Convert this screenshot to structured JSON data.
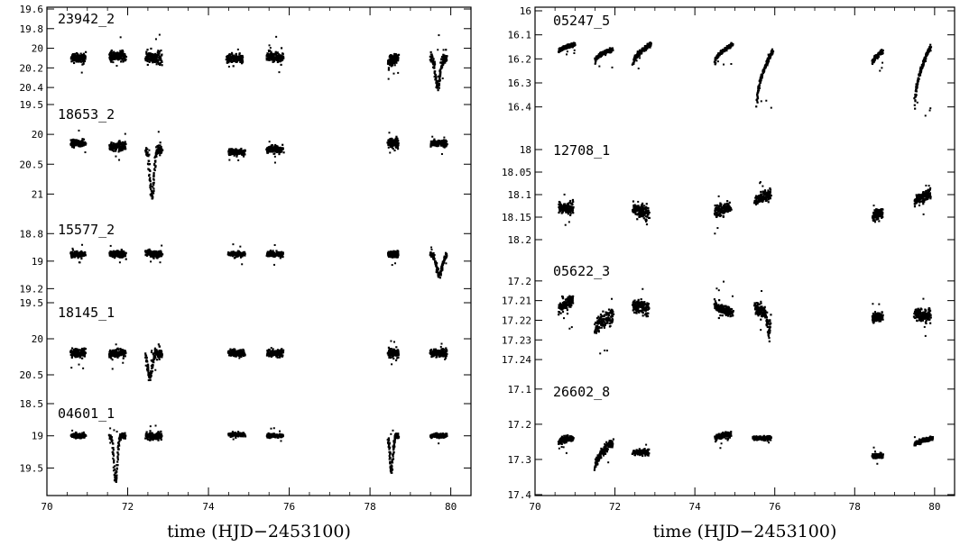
{
  "chart_data": [
    {
      "type": "scatter",
      "xlabel": "time (HJD−2453100)",
      "xlim": [
        70,
        80.5
      ],
      "xticks": [
        70,
        72,
        74,
        76,
        78,
        80
      ],
      "xtick_labels": [
        "70",
        "72",
        "74",
        "76",
        "78",
        "80"
      ],
      "y_inverted": true,
      "grid": false,
      "panels": [
        {
          "name": "23942_2",
          "ylim": [
            19.6,
            20.5
          ],
          "yticks": [
            {
              "value": 19.6,
              "label": "19.6"
            },
            {
              "value": 19.8,
              "label": "19.8"
            },
            {
              "value": 20.0,
              "label": "20"
            },
            {
              "value": 20.2,
              "label": "20.2"
            },
            {
              "value": 20.4,
              "label": "20.4"
            }
          ],
          "segments": [
            {
              "t0": 70.6,
              "t1": 70.95,
              "start": 20.1,
              "end": 20.1,
              "scatter": 0.05
            },
            {
              "t0": 71.55,
              "t1": 71.95,
              "start": 20.08,
              "end": 20.08,
              "scatter": 0.05
            },
            {
              "t0": 72.45,
              "t1": 72.85,
              "start": 20.08,
              "end": 20.1,
              "scatter": 0.06
            },
            {
              "t0": 74.45,
              "t1": 74.85,
              "start": 20.1,
              "end": 20.1,
              "scatter": 0.05
            },
            {
              "t0": 75.45,
              "t1": 75.85,
              "start": 20.08,
              "end": 20.1,
              "scatter": 0.05
            },
            {
              "t0": 78.45,
              "t1": 78.7,
              "start": 20.15,
              "end": 20.1,
              "scatter": 0.05
            },
            {
              "t0": 79.5,
              "t1": 79.9,
              "start": 20.1,
              "end": 20.1,
              "scatter": 0.06,
              "dip_at": 79.68,
              "dip_depth": 0.28,
              "dip_width": 0.08
            }
          ]
        },
        {
          "name": "18653_2",
          "ylim": [
            19.5,
            21.1
          ],
          "yticks": [
            {
              "value": 19.5,
              "label": "19.5"
            },
            {
              "value": 20.0,
              "label": "20"
            },
            {
              "value": 20.5,
              "label": "20.5"
            },
            {
              "value": 21.0,
              "label": "21"
            }
          ],
          "segments": [
            {
              "t0": 70.6,
              "t1": 70.95,
              "start": 20.15,
              "end": 20.15,
              "scatter": 0.06
            },
            {
              "t0": 71.55,
              "t1": 71.95,
              "start": 20.2,
              "end": 20.2,
              "scatter": 0.07
            },
            {
              "t0": 72.45,
              "t1": 72.85,
              "start": 20.25,
              "end": 20.25,
              "scatter": 0.08,
              "dip_at": 72.6,
              "dip_depth": 0.8,
              "dip_width": 0.07
            },
            {
              "t0": 74.5,
              "t1": 74.9,
              "start": 20.3,
              "end": 20.3,
              "scatter": 0.05
            },
            {
              "t0": 75.45,
              "t1": 75.85,
              "start": 20.25,
              "end": 20.25,
              "scatter": 0.06
            },
            {
              "t0": 78.45,
              "t1": 78.7,
              "start": 20.15,
              "end": 20.15,
              "scatter": 0.07
            },
            {
              "t0": 79.5,
              "t1": 79.9,
              "start": 20.15,
              "end": 20.15,
              "scatter": 0.05
            }
          ]
        },
        {
          "name": "15577_2",
          "ylim": [
            18.7,
            19.25
          ],
          "yticks": [
            {
              "value": 18.8,
              "label": "18.8"
            },
            {
              "value": 19.0,
              "label": "19"
            },
            {
              "value": 19.2,
              "label": "19.2"
            }
          ],
          "segments": [
            {
              "t0": 70.6,
              "t1": 70.95,
              "start": 18.95,
              "end": 18.95,
              "scatter": 0.02
            },
            {
              "t0": 71.55,
              "t1": 71.95,
              "start": 18.95,
              "end": 18.95,
              "scatter": 0.025
            },
            {
              "t0": 72.45,
              "t1": 72.85,
              "start": 18.94,
              "end": 18.95,
              "scatter": 0.025
            },
            {
              "t0": 74.5,
              "t1": 74.9,
              "start": 18.95,
              "end": 18.95,
              "scatter": 0.02
            },
            {
              "t0": 75.45,
              "t1": 75.85,
              "start": 18.95,
              "end": 18.95,
              "scatter": 0.02
            },
            {
              "t0": 78.45,
              "t1": 78.7,
              "start": 18.95,
              "end": 18.95,
              "scatter": 0.02
            },
            {
              "t0": 79.5,
              "t1": 79.9,
              "start": 18.95,
              "end": 18.95,
              "scatter": 0.02,
              "dip_at": 79.72,
              "dip_depth": 0.15,
              "dip_width": 0.1
            }
          ]
        },
        {
          "name": "18145_1",
          "ylim": [
            19.5,
            20.8
          ],
          "yticks": [
            {
              "value": 19.5,
              "label": "19.5"
            },
            {
              "value": 20.0,
              "label": "20"
            },
            {
              "value": 20.5,
              "label": "20.5"
            }
          ],
          "segments": [
            {
              "t0": 70.6,
              "t1": 70.95,
              "start": 20.2,
              "end": 20.2,
              "scatter": 0.06
            },
            {
              "t0": 71.55,
              "t1": 71.95,
              "start": 20.2,
              "end": 20.2,
              "scatter": 0.06
            },
            {
              "t0": 72.45,
              "t1": 72.85,
              "start": 20.2,
              "end": 20.2,
              "scatter": 0.08,
              "dip_at": 72.55,
              "dip_depth": 0.35,
              "dip_width": 0.07
            },
            {
              "t0": 74.5,
              "t1": 74.9,
              "start": 20.2,
              "end": 20.2,
              "scatter": 0.05
            },
            {
              "t0": 75.45,
              "t1": 75.85,
              "start": 20.2,
              "end": 20.2,
              "scatter": 0.05
            },
            {
              "t0": 78.45,
              "t1": 78.7,
              "start": 20.2,
              "end": 20.2,
              "scatter": 0.06
            },
            {
              "t0": 79.5,
              "t1": 79.9,
              "start": 20.2,
              "end": 20.2,
              "scatter": 0.05
            }
          ]
        },
        {
          "name": "04601_1",
          "ylim": [
            18.5,
            19.9
          ],
          "yticks": [
            {
              "value": 18.5,
              "label": "18.5"
            },
            {
              "value": 19.0,
              "label": "19"
            },
            {
              "value": 19.5,
              "label": "19.5"
            }
          ],
          "segments": [
            {
              "t0": 70.6,
              "t1": 70.95,
              "start": 19.0,
              "end": 19.0,
              "scatter": 0.03
            },
            {
              "t0": 71.55,
              "t1": 71.95,
              "start": 19.0,
              "end": 19.0,
              "scatter": 0.04,
              "dip_at": 71.7,
              "dip_depth": 0.7,
              "dip_width": 0.06
            },
            {
              "t0": 72.45,
              "t1": 72.85,
              "start": 19.0,
              "end": 19.0,
              "scatter": 0.05
            },
            {
              "t0": 74.5,
              "t1": 74.9,
              "start": 18.98,
              "end": 18.98,
              "scatter": 0.03
            },
            {
              "t0": 75.45,
              "t1": 75.85,
              "start": 19.0,
              "end": 19.0,
              "scatter": 0.03
            },
            {
              "t0": 78.45,
              "t1": 78.7,
              "start": 19.0,
              "end": 19.0,
              "scatter": 0.04,
              "dip_at": 78.53,
              "dip_depth": 0.55,
              "dip_width": 0.05
            },
            {
              "t0": 79.5,
              "t1": 79.9,
              "start": 19.0,
              "end": 19.0,
              "scatter": 0.03
            }
          ]
        }
      ]
    },
    {
      "type": "scatter",
      "xlabel": "time (HJD−2453100)",
      "xlim": [
        70,
        80.5
      ],
      "xticks": [
        70,
        72,
        74,
        76,
        78,
        80
      ],
      "xtick_labels": [
        "70",
        "72",
        "74",
        "76",
        "78",
        "80"
      ],
      "y_inverted": true,
      "grid": false,
      "panels": [
        {
          "name": "05247_5",
          "ylim": [
            16.0,
            16.45
          ],
          "yticks": [
            {
              "value": 16.0,
              "label": "16"
            },
            {
              "value": 16.1,
              "label": "16.1"
            },
            {
              "value": 16.2,
              "label": "16.2"
            },
            {
              "value": 16.3,
              "label": "16.3"
            },
            {
              "value": 16.4,
              "label": "16.4"
            }
          ],
          "segments": [
            {
              "t0": 70.6,
              "t1": 71.0,
              "start": 16.17,
              "end": 16.14,
              "scatter": 0.008
            },
            {
              "t0": 71.5,
              "t1": 71.95,
              "start": 16.21,
              "end": 16.16,
              "scatter": 0.008
            },
            {
              "t0": 72.45,
              "t1": 72.9,
              "start": 16.23,
              "end": 16.14,
              "scatter": 0.01
            },
            {
              "t0": 74.5,
              "t1": 74.95,
              "start": 16.22,
              "end": 16.14,
              "scatter": 0.008
            },
            {
              "t0": 75.55,
              "t1": 75.95,
              "start": 16.4,
              "end": 16.17,
              "scatter": 0.01
            },
            {
              "t0": 78.45,
              "t1": 78.7,
              "start": 16.22,
              "end": 16.17,
              "scatter": 0.008
            },
            {
              "t0": 79.5,
              "t1": 79.9,
              "start": 16.41,
              "end": 16.15,
              "scatter": 0.01
            }
          ]
        },
        {
          "name": "12708_1",
          "ylim": [
            17.98,
            18.22
          ],
          "yticks": [
            {
              "value": 18.0,
              "label": "18"
            },
            {
              "value": 18.05,
              "label": "18.05"
            },
            {
              "value": 18.1,
              "label": "18.1"
            },
            {
              "value": 18.15,
              "label": "18.15"
            },
            {
              "value": 18.2,
              "label": "18.2"
            }
          ],
          "segments": [
            {
              "t0": 70.6,
              "t1": 70.95,
              "start": 18.13,
              "end": 18.13,
              "scatter": 0.012
            },
            {
              "t0": 72.45,
              "t1": 72.85,
              "start": 18.13,
              "end": 18.14,
              "scatter": 0.014
            },
            {
              "t0": 74.5,
              "t1": 74.9,
              "start": 18.14,
              "end": 18.13,
              "scatter": 0.012
            },
            {
              "t0": 75.5,
              "t1": 75.9,
              "start": 18.12,
              "end": 18.1,
              "scatter": 0.012
            },
            {
              "t0": 78.45,
              "t1": 78.7,
              "start": 18.15,
              "end": 18.14,
              "scatter": 0.01
            },
            {
              "t0": 79.5,
              "t1": 79.9,
              "start": 18.12,
              "end": 18.1,
              "scatter": 0.012
            }
          ]
        },
        {
          "name": "05622_3",
          "ylim": [
            17.19,
            17.245
          ],
          "yticks": [
            {
              "value": 17.2,
              "label": "17.2"
            },
            {
              "value": 17.21,
              "label": "17.21"
            },
            {
              "value": 17.22,
              "label": "17.22"
            },
            {
              "value": 17.23,
              "label": "17.23"
            },
            {
              "value": 17.24,
              "label": "17.24"
            }
          ],
          "segments": [
            {
              "t0": 70.6,
              "t1": 70.95,
              "start": 17.215,
              "end": 17.21,
              "scatter": 0.003
            },
            {
              "t0": 71.5,
              "t1": 71.95,
              "start": 17.225,
              "end": 17.218,
              "scatter": 0.004
            },
            {
              "t0": 72.45,
              "t1": 72.85,
              "start": 17.212,
              "end": 17.214,
              "scatter": 0.003
            },
            {
              "t0": 74.5,
              "t1": 74.95,
              "start": 17.212,
              "end": 17.216,
              "scatter": 0.003
            },
            {
              "t0": 75.5,
              "t1": 75.9,
              "start": 17.213,
              "end": 17.217,
              "scatter": 0.003,
              "dip_at": 75.85,
              "dip_depth": 0.01,
              "dip_width": 0.04
            },
            {
              "t0": 78.45,
              "t1": 78.7,
              "start": 17.219,
              "end": 17.218,
              "scatter": 0.002
            },
            {
              "t0": 79.5,
              "t1": 79.9,
              "start": 17.216,
              "end": 17.218,
              "scatter": 0.003
            }
          ]
        },
        {
          "name": "26602_8",
          "ylim": [
            17.08,
            17.4
          ],
          "yticks": [
            {
              "value": 17.1,
              "label": "17.1"
            },
            {
              "value": 17.2,
              "label": "17.2"
            },
            {
              "value": 17.3,
              "label": "17.3"
            },
            {
              "value": 17.4,
              "label": "17.4"
            }
          ],
          "segments": [
            {
              "t0": 70.6,
              "t1": 70.95,
              "start": 17.25,
              "end": 17.24,
              "scatter": 0.008
            },
            {
              "t0": 71.5,
              "t1": 71.95,
              "start": 17.33,
              "end": 17.25,
              "scatter": 0.012
            },
            {
              "t0": 72.45,
              "t1": 72.85,
              "start": 17.28,
              "end": 17.28,
              "scatter": 0.008
            },
            {
              "t0": 74.5,
              "t1": 74.9,
              "start": 17.24,
              "end": 17.23,
              "scatter": 0.008
            },
            {
              "t0": 75.45,
              "t1": 75.9,
              "start": 17.24,
              "end": 17.24,
              "scatter": 0.005
            },
            {
              "t0": 78.45,
              "t1": 78.7,
              "start": 17.29,
              "end": 17.29,
              "scatter": 0.006
            },
            {
              "t0": 79.5,
              "t1": 79.95,
              "start": 17.26,
              "end": 17.24,
              "scatter": 0.006
            }
          ]
        }
      ]
    }
  ]
}
